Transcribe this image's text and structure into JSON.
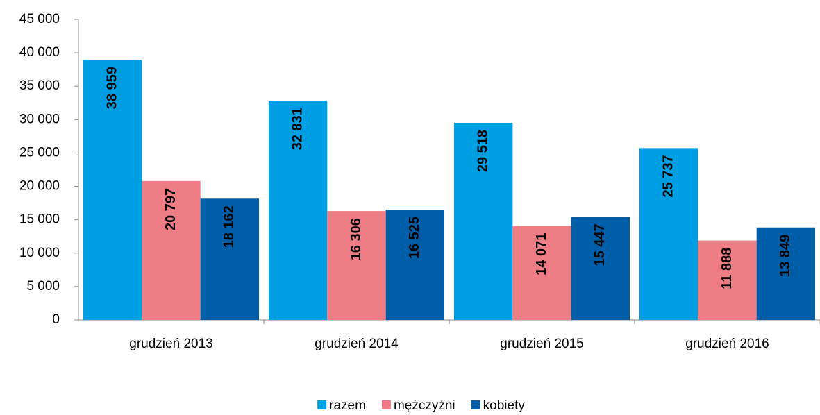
{
  "chart_data": {
    "type": "bar",
    "categories": [
      "grudzień 2013",
      "grudzień 2014",
      "grudzień 2015",
      "grudzień 2016"
    ],
    "series": [
      {
        "name": "razem",
        "color": "#009fe3",
        "label_color": "#000000",
        "values": [
          38959,
          32831,
          29518,
          25737
        ],
        "value_labels": [
          "38 959",
          "32 831",
          "29 518",
          "25 737"
        ]
      },
      {
        "name": "mężczyźni",
        "color": "#ef7d86",
        "label_color": "#000000",
        "values": [
          20797,
          16306,
          14071,
          11888
        ],
        "value_labels": [
          "20 797",
          "16 306",
          "14 071",
          "11 888"
        ]
      },
      {
        "name": "kobiety",
        "color": "#005ea8",
        "label_color": "#ffffff",
        "values": [
          18162,
          16525,
          15447,
          13849
        ],
        "value_labels": [
          "18 162",
          "16 525",
          "15 447",
          "13 849"
        ]
      }
    ],
    "ylim": [
      0,
      45000
    ],
    "yticks": [
      0,
      {
        "value": 5000,
        "label": "5 000"
      },
      {
        "value": 10000,
        "label": "10 000"
      },
      {
        "value": 15000,
        "label": "15 000"
      },
      {
        "value": 20000,
        "label": "20 000"
      },
      {
        "value": 25000,
        "label": "25 000"
      },
      {
        "value": 30000,
        "label": "30 000"
      },
      {
        "value": 35000,
        "label": "35 000"
      },
      {
        "value": 40000,
        "label": "40 000"
      },
      {
        "value": 45000,
        "label": "45 000"
      }
    ],
    "legend": "bottom",
    "grid": false
  }
}
